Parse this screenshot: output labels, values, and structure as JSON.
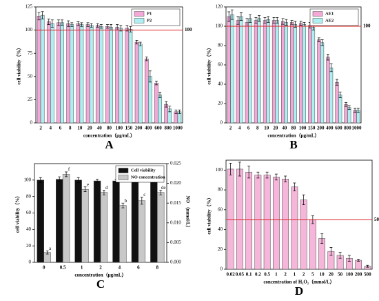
{
  "chart_data": [
    {
      "type": "bar",
      "label": "A",
      "x_label": "concentration（μg/mL）",
      "y_label": "cell viability（%）",
      "categories": [
        "2",
        "4",
        "6",
        "8",
        "10",
        "20",
        "40",
        "80",
        "100",
        "150",
        "200",
        "400",
        "600",
        "800",
        "1000"
      ],
      "series": [
        {
          "name": "P1",
          "color": "#f3a8d8",
          "values": [
            115,
            109,
            108,
            107,
            107,
            106,
            105,
            104,
            103,
            102,
            87,
            69,
            43,
            20,
            12
          ],
          "errors": [
            4,
            3,
            3,
            3,
            2,
            2,
            2,
            2,
            3,
            3,
            2,
            2,
            2,
            3,
            2
          ]
        },
        {
          "name": "P2",
          "color": "#aef0f2",
          "values": [
            116,
            107,
            108,
            106,
            106,
            105,
            104,
            103,
            102,
            101,
            85,
            50,
            30,
            15,
            12
          ],
          "errors": [
            4,
            4,
            3,
            2,
            2,
            2,
            2,
            3,
            3,
            3,
            2,
            6,
            3,
            3,
            2
          ]
        }
      ],
      "ylim": [
        0,
        125
      ],
      "yticks": [
        0,
        25,
        50,
        75,
        100,
        125
      ],
      "ref_line": {
        "value": 100,
        "label": "100"
      },
      "legend": "upper right"
    },
    {
      "type": "bar",
      "label": "B",
      "x_label": "concentration（μg/mL）",
      "y_label": "cell viability（%）",
      "categories": [
        "2",
        "4",
        "6",
        "8",
        "10",
        "20",
        "40",
        "80",
        "100",
        "150",
        "200",
        "400",
        "600",
        "800",
        "1000"
      ],
      "series": [
        {
          "name": "AE1",
          "color": "#f3a8d8",
          "values": [
            110,
            106,
            104,
            106,
            106,
            106,
            105,
            104,
            103,
            101,
            86,
            68,
            42,
            19,
            13
          ],
          "errors": [
            5,
            4,
            4,
            3,
            3,
            3,
            3,
            2,
            2,
            3,
            2,
            3,
            3,
            2,
            2
          ]
        },
        {
          "name": "AE2",
          "color": "#aef0f2",
          "values": [
            112,
            110,
            108,
            108,
            107,
            106,
            104,
            102,
            102,
            99,
            83,
            57,
            29,
            16,
            13
          ],
          "errors": [
            5,
            4,
            4,
            3,
            3,
            3,
            3,
            3,
            2,
            3,
            3,
            4,
            3,
            2,
            2
          ]
        }
      ],
      "ylim": [
        0,
        120
      ],
      "yticks": [
        0,
        20,
        40,
        60,
        80,
        100,
        120
      ],
      "ref_line": {
        "value": 100,
        "label": "100"
      },
      "legend": "upper right"
    },
    {
      "type": "bar",
      "label": "C",
      "x_label": "concentration（μg/mL）",
      "y_label": "cell viability（%）",
      "y2_label": "NO （mmol/L）",
      "categories": [
        "0",
        "0.5",
        "1",
        "2",
        "4",
        "6",
        "8"
      ],
      "series": [
        {
          "name": "Cell viability",
          "color": "#111111",
          "values": [
            100,
            101,
            100,
            99,
            99,
            99,
            99
          ],
          "errors": [
            3,
            3,
            3,
            2,
            2,
            2,
            2
          ]
        },
        {
          "name": "NO concentration",
          "color": "#c8c8c8",
          "axis": "y2",
          "values": [
            0.0025,
            0.0223,
            0.0185,
            0.0177,
            0.0144,
            0.0156,
            0.0177
          ],
          "errors": [
            0.0004,
            0.0006,
            0.0006,
            0.0006,
            0.0006,
            0.0009,
            0.0006
          ],
          "letters": [
            "a",
            "f",
            "e",
            "d",
            "b",
            "c",
            "de"
          ]
        }
      ],
      "ylim": [
        0,
        120
      ],
      "yticks": [
        0,
        20,
        40,
        60,
        80,
        100
      ],
      "y2lim": [
        0,
        0.025
      ],
      "y2ticks": [
        {
          "value": 0,
          "label": "0.000"
        },
        0.005,
        {
          "value": 0.01,
          "label": "0.010"
        },
        0.015,
        {
          "value": 0.02,
          "label": "0.020"
        },
        0.025
      ],
      "legend": "upper right"
    },
    {
      "type": "bar",
      "label": "D",
      "x_label": "concentration of H₂O₂（mmol/L）",
      "y_label": "cell viability（%）",
      "categories": [
        "0.02",
        "0.05",
        "0.1",
        "0.2",
        "0.5",
        "1",
        "2",
        "1",
        "2",
        "5",
        "10",
        "20",
        "50",
        "100",
        "200",
        "500"
      ],
      "series": [
        {
          "color": "#f5b6da",
          "values": [
            101,
            101,
            98,
            95,
            95,
            93,
            91,
            83,
            70,
            50,
            31,
            18,
            14,
            11,
            9,
            3
          ],
          "errors": [
            6,
            7,
            6,
            3,
            3,
            3,
            3,
            4,
            5,
            4,
            5,
            4,
            3,
            3,
            1,
            1
          ]
        }
      ],
      "ylim": [
        0,
        110
      ],
      "yticks": [
        0,
        20,
        40,
        60,
        80,
        100
      ],
      "ref_line": {
        "value": 50,
        "label": "50"
      }
    }
  ]
}
